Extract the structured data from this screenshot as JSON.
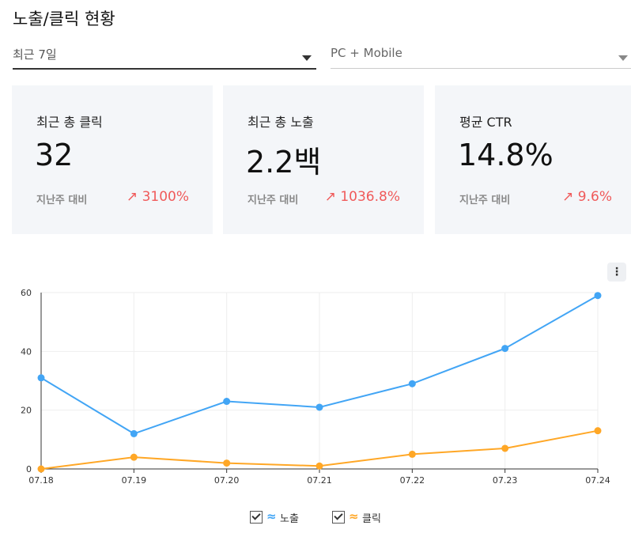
{
  "title": "노출/클릭 현황",
  "filters": {
    "period": "최근 7일",
    "device": "PC + Mobile"
  },
  "cards": [
    {
      "label": "최근 총 클릭",
      "value": "32",
      "compare_label": "지난주 대비",
      "change": "↗ 3100%"
    },
    {
      "label": "최근 총 노출",
      "value": "2.2백",
      "compare_label": "지난주 대비",
      "change": "↗ 1036.8%"
    },
    {
      "label": "평균 CTR",
      "value": "14.8%",
      "compare_label": "지난주 대비",
      "change": "↗ 9.6%"
    }
  ],
  "colors": {
    "impressions": "#42a5f5",
    "clicks": "#ffa726",
    "change": "#f05a5a"
  },
  "chart_data": {
    "type": "line",
    "categories": [
      "07.18",
      "07.19",
      "07.20",
      "07.21",
      "07.22",
      "07.23",
      "07.24"
    ],
    "series": [
      {
        "name": "노출",
        "values": [
          31,
          12,
          23,
          21,
          29,
          41,
          59
        ]
      },
      {
        "name": "클릭",
        "values": [
          0,
          4,
          2,
          1,
          5,
          7,
          13
        ]
      }
    ],
    "ylim": [
      0,
      60
    ],
    "yticks": [
      0,
      20,
      40,
      60
    ],
    "grid": true,
    "legend": "bottom"
  },
  "legend": {
    "impressions_label": "노출",
    "clicks_label": "클릭",
    "icon": "≈"
  }
}
